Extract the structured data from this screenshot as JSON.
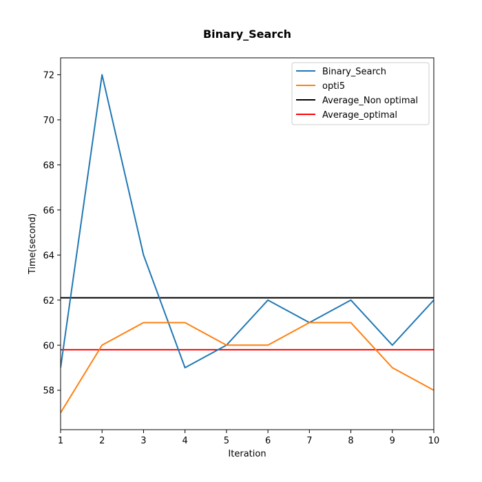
{
  "chart_data": {
    "type": "line",
    "title": "Binary_Search",
    "xlabel": "Iteration",
    "ylabel": "Time(second)",
    "xlim": [
      1,
      10
    ],
    "ylim": [
      56.25,
      72.75
    ],
    "xticks": [
      1,
      2,
      3,
      4,
      5,
      6,
      7,
      8,
      9,
      10
    ],
    "yticks": [
      58,
      60,
      62,
      64,
      66,
      68,
      70,
      72
    ],
    "grid": false,
    "legend_position": "top-right",
    "x": [
      1,
      2,
      3,
      4,
      5,
      6,
      7,
      8,
      9,
      10
    ],
    "series": [
      {
        "name": "Binary_Search",
        "color": "#1f77b4",
        "values": [
          59,
          72,
          64,
          59,
          60,
          62,
          61,
          62,
          60,
          62
        ]
      },
      {
        "name": "opti5",
        "color": "#ff7f0e",
        "values": [
          57,
          60,
          61,
          61,
          60,
          60,
          61,
          61,
          59,
          58
        ]
      }
    ],
    "hlines": [
      {
        "name": "Average_Non optimal",
        "color": "#000000",
        "value": 62.1
      },
      {
        "name": "Average_optimal",
        "color": "#ff0000",
        "value": 59.8
      }
    ]
  }
}
